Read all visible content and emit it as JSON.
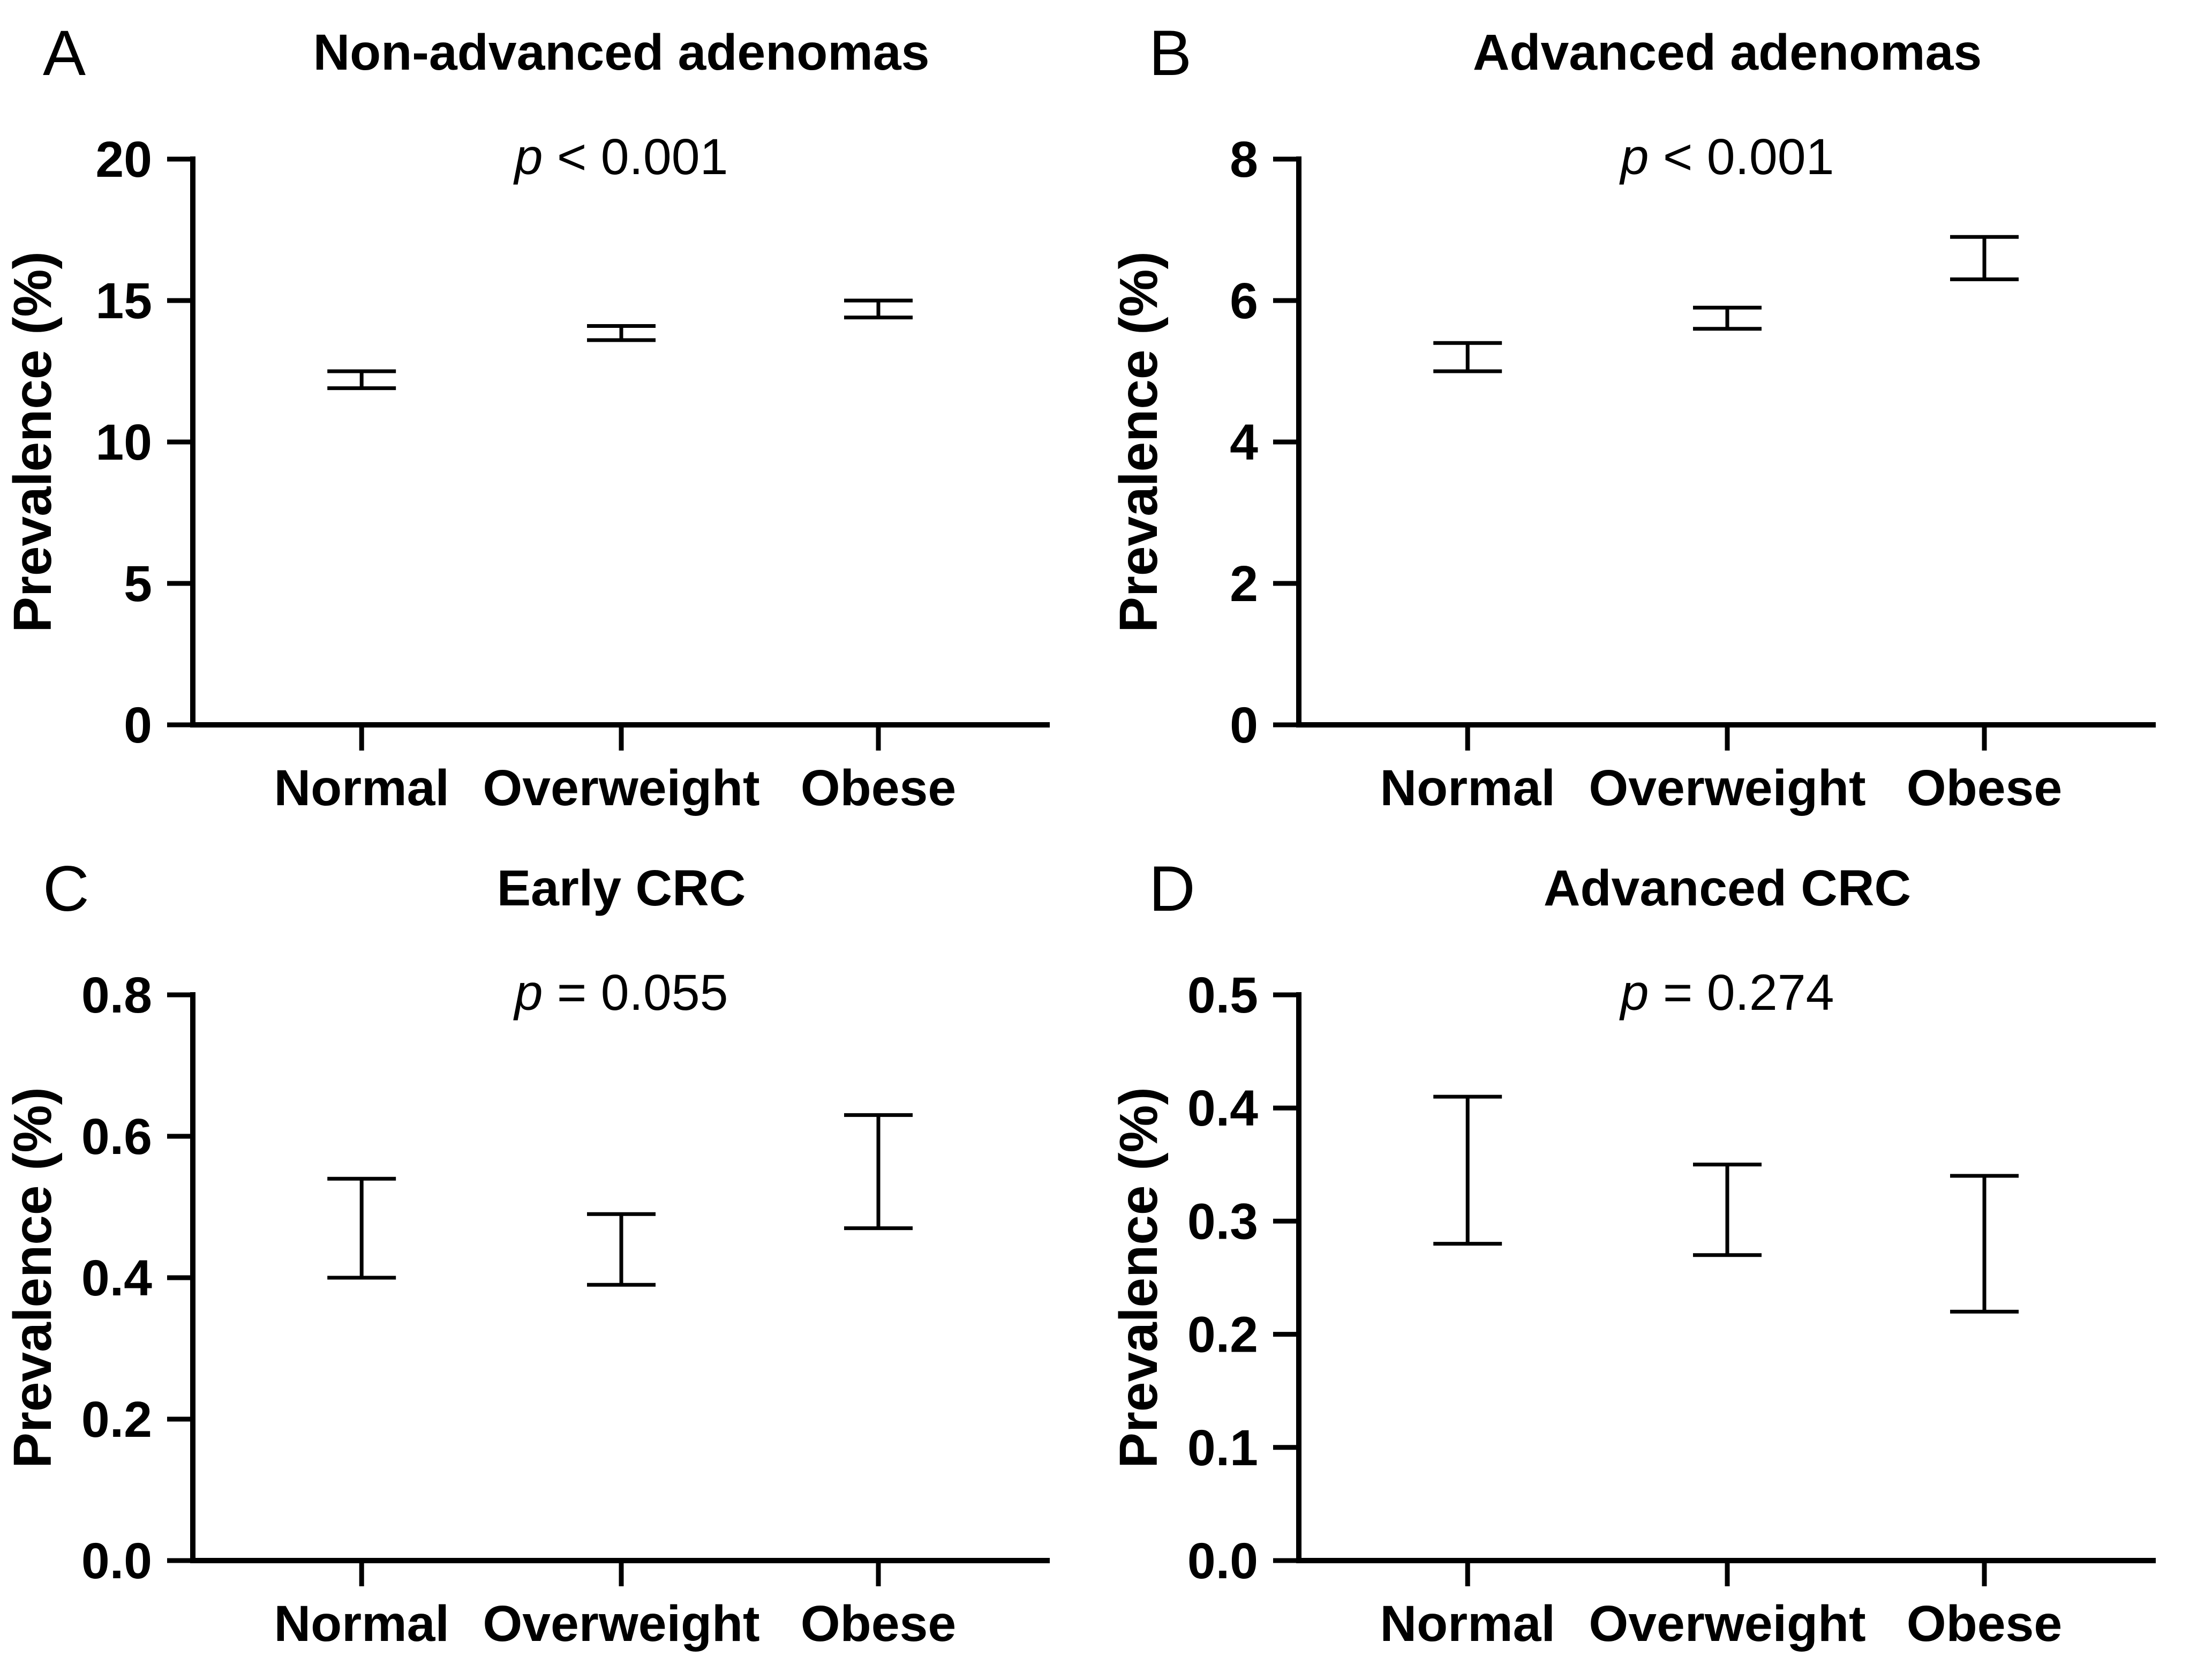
{
  "figure": {
    "background_color": "#ffffff",
    "ink_color": "#000000",
    "layout": "2x2 panel figure of error-bar prevalence plots"
  },
  "chart_data": [
    {
      "type": "errorbar",
      "panel_label": "A",
      "title": "Non-advanced adenomas",
      "p": {
        "var": "p",
        "rest": " < 0.001"
      },
      "ylabel": "Prevalence (%)",
      "xlabel": "",
      "categories": [
        "Normal",
        "Overweight",
        "Obese"
      ],
      "ylim": [
        0,
        20
      ],
      "yticks": [
        0,
        5,
        10,
        15,
        20
      ],
      "ytick_labels": [
        "0",
        "5",
        "10",
        "15",
        "20"
      ],
      "grid": false,
      "series": [
        {
          "category": "Normal",
          "low": 11.9,
          "high": 12.5
        },
        {
          "category": "Overweight",
          "low": 13.6,
          "high": 14.1
        },
        {
          "category": "Obese",
          "low": 14.4,
          "high": 15.0
        }
      ]
    },
    {
      "type": "errorbar",
      "panel_label": "B",
      "title": "Advanced adenomas",
      "p": {
        "var": "p",
        "rest": " < 0.001"
      },
      "ylabel": "Prevalence (%)",
      "xlabel": "",
      "categories": [
        "Normal",
        "Overweight",
        "Obese"
      ],
      "ylim": [
        0,
        8
      ],
      "yticks": [
        0,
        2,
        4,
        6,
        8
      ],
      "ytick_labels": [
        "0",
        "2",
        "4",
        "6",
        "8"
      ],
      "grid": false,
      "series": [
        {
          "category": "Normal",
          "low": 5.0,
          "high": 5.4
        },
        {
          "category": "Overweight",
          "low": 5.6,
          "high": 5.9
        },
        {
          "category": "Obese",
          "low": 6.3,
          "high": 6.9
        }
      ]
    },
    {
      "type": "errorbar",
      "panel_label": "C",
      "title": "Early CRC",
      "p": {
        "var": "p",
        "rest": " = 0.055"
      },
      "ylabel": "Prevalence (%)",
      "xlabel": "",
      "categories": [
        "Normal",
        "Overweight",
        "Obese"
      ],
      "ylim": [
        0,
        0.8
      ],
      "yticks": [
        0,
        0.2,
        0.4,
        0.6,
        0.8
      ],
      "ytick_labels": [
        "0.0",
        "0.2",
        "0.4",
        "0.6",
        "0.8"
      ],
      "grid": false,
      "series": [
        {
          "category": "Normal",
          "low": 0.4,
          "high": 0.54
        },
        {
          "category": "Overweight",
          "low": 0.39,
          "high": 0.49
        },
        {
          "category": "Obese",
          "low": 0.47,
          "high": 0.63
        }
      ]
    },
    {
      "type": "errorbar",
      "panel_label": "D",
      "title": "Advanced CRC",
      "p": {
        "var": "p",
        "rest": " = 0.274"
      },
      "ylabel": "Prevalence (%)",
      "xlabel": "",
      "categories": [
        "Normal",
        "Overweight",
        "Obese"
      ],
      "ylim": [
        0,
        0.5
      ],
      "yticks": [
        0,
        0.1,
        0.2,
        0.3,
        0.4,
        0.5
      ],
      "ytick_labels": [
        "0.0",
        "0.1",
        "0.2",
        "0.3",
        "0.4",
        "0.5"
      ],
      "grid": false,
      "series": [
        {
          "category": "Normal",
          "low": 0.28,
          "high": 0.41
        },
        {
          "category": "Overweight",
          "low": 0.27,
          "high": 0.35
        },
        {
          "category": "Obese",
          "low": 0.22,
          "high": 0.34
        }
      ]
    }
  ]
}
